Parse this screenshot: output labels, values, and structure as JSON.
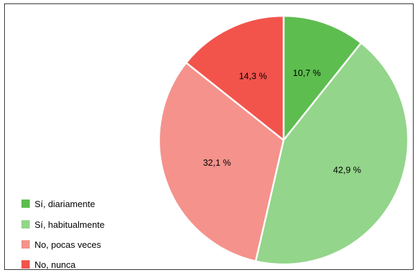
{
  "chart_data": {
    "type": "pie",
    "title": "",
    "categories": [
      "Sí, diariamente",
      "Sí, habitualmente",
      "No, pocas veces",
      "No, nunca"
    ],
    "values": [
      10.7,
      42.9,
      32.1,
      14.3
    ],
    "value_labels": [
      "10,7 %",
      "42,9 %",
      "32,1 %",
      "14,3 %"
    ],
    "colors": [
      "#5dbd4f",
      "#93d58a",
      "#f5928c",
      "#f2544c"
    ],
    "start_angle_deg": 0,
    "direction": "clockwise",
    "legend_position": "bottom-left"
  },
  "legend": {
    "items": [
      {
        "label": "Sí, diariamente",
        "color": "#5dbd4f"
      },
      {
        "label": "Sí, habitualmente",
        "color": "#93d58a"
      },
      {
        "label": "No, pocas veces",
        "color": "#f5928c"
      },
      {
        "label": "No, nunca",
        "color": "#f2544c"
      }
    ]
  }
}
